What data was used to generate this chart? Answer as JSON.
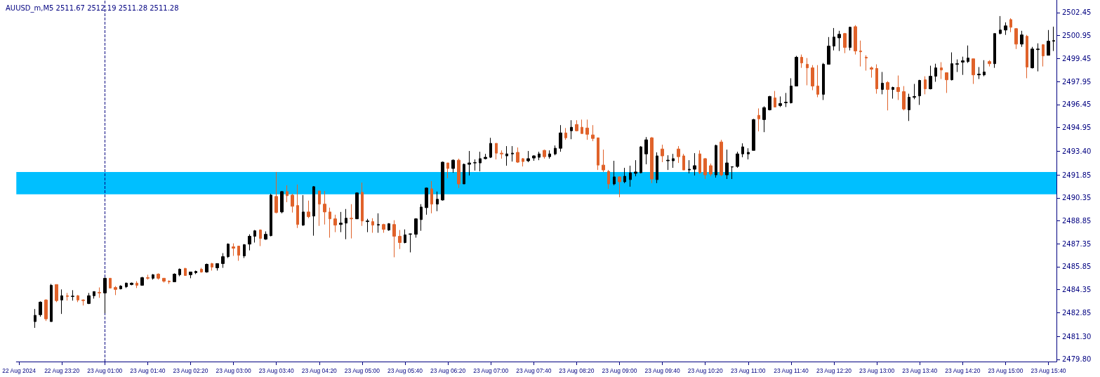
{
  "chart_data": {
    "type": "candlestick",
    "title": "AUUSD_m,M5 2511.67 2512.19 2511.28 2511.28",
    "categories": [
      "22 Aug 2024",
      null,
      null,
      null,
      null,
      null,
      null,
      null,
      "22 Aug 23:20",
      null,
      null,
      null,
      null,
      null,
      null,
      null,
      "23 Aug 01:00",
      null,
      null,
      null,
      null,
      null,
      null,
      null,
      "23 Aug 01:40",
      null,
      null,
      null,
      null,
      null,
      null,
      null,
      "23 Aug 02:20",
      null,
      null,
      null,
      null,
      null,
      null,
      null,
      "23 Aug 03:00",
      null,
      null,
      null,
      null,
      null,
      null,
      null,
      "23 Aug 03:40",
      null,
      null,
      null,
      null,
      null,
      null,
      null,
      "23 Aug 04:20",
      null,
      null,
      null,
      null,
      null,
      null,
      null,
      "23 Aug 05:00",
      null,
      null,
      null,
      null,
      null,
      null,
      null,
      "23 Aug 05:40",
      null,
      null,
      null,
      null,
      null,
      null,
      null,
      "23 Aug 06:20",
      null,
      null,
      null,
      null,
      null,
      null,
      null,
      "23 Aug 07:00",
      null,
      null,
      null,
      null,
      null,
      null,
      null,
      "23 Aug 07:40",
      null,
      null,
      null,
      null,
      null,
      null,
      null,
      "23 Aug 08:20",
      null,
      null,
      null,
      null,
      null,
      null,
      null,
      "23 Aug 09:00",
      null,
      null,
      null,
      null,
      null,
      null,
      null,
      "23 Aug 09:40",
      null,
      null,
      null,
      null,
      null,
      null,
      null,
      "23 Aug 10:20",
      null,
      null,
      null,
      null,
      null,
      null,
      null,
      "23 Aug 11:00",
      null,
      null,
      null,
      null,
      null,
      null,
      null,
      "23 Aug 11:40",
      null,
      null,
      null,
      null,
      null,
      null,
      null,
      "23 Aug 12:20",
      null,
      null,
      null,
      null,
      null,
      null,
      null,
      "23 Aug 13:00",
      null,
      null,
      null,
      null,
      null,
      null,
      null,
      "23 Aug 13:40",
      null,
      null,
      null,
      null,
      null,
      null,
      null,
      "23 Aug 14:20",
      null,
      null,
      null,
      null,
      null,
      null,
      null,
      "23 Aug 15:00",
      null,
      null,
      null,
      null,
      null,
      null,
      null,
      "23 Aug 15:40",
      null
    ],
    "ohlc": [
      null,
      null,
      null,
      [
        2482.27,
        2483.09,
        2481.86,
        2482.68
      ],
      [
        2482.72,
        2483.59,
        2482.59,
        2483.54
      ],
      [
        2483.68,
        2483.73,
        2482.31,
        2482.45
      ],
      [
        2482.27,
        2484.73,
        2482.27,
        2484.64
      ],
      [
        2484.69,
        2484.69,
        2483.54,
        2483.64
      ],
      [
        2483.68,
        2484.37,
        2482.77,
        2483.96
      ],
      [
        2483.96,
        2484.14,
        2483.64,
        2483.91
      ],
      [
        2483.91,
        2484.32,
        2483.64,
        2483.93
      ],
      [
        2483.96,
        2484.0,
        2483.54,
        2483.68
      ],
      [
        2483.68,
        2483.73,
        2483.32,
        2483.64
      ],
      [
        2483.45,
        2484.14,
        2483.41,
        2483.96
      ],
      [
        2483.96,
        2484.23,
        2483.77,
        2484.23
      ],
      [
        2484.18,
        2484.5,
        2483.82,
        2484.14
      ],
      [
        2484.14,
        2485.14,
        2482.81,
        2485.1
      ],
      [
        2485.1,
        2485.1,
        2484.46,
        2484.46
      ],
      [
        2484.5,
        2484.59,
        2484.0,
        2484.37
      ],
      [
        2484.41,
        2484.64,
        2484.37,
        2484.59
      ],
      [
        2484.55,
        2484.82,
        2484.46,
        2484.78
      ],
      [
        2484.69,
        2484.82,
        2484.64,
        2484.78
      ],
      [
        2484.78,
        2484.91,
        2484.46,
        2484.64
      ],
      [
        2484.64,
        2485.19,
        2484.64,
        2485.14
      ],
      [
        2485.14,
        2485.33,
        2485.01,
        2485.1
      ],
      [
        2485.1,
        2485.37,
        2485.01,
        2485.33
      ],
      [
        2485.37,
        2485.42,
        2485.01,
        2485.1
      ],
      [
        2485.1,
        2485.1,
        2484.82,
        2484.91
      ],
      [
        2484.91,
        2484.96,
        2484.73,
        2484.87
      ],
      [
        2484.87,
        2485.42,
        2484.87,
        2485.37
      ],
      [
        2485.33,
        2485.74,
        2485.23,
        2485.69
      ],
      [
        2485.74,
        2485.78,
        2485.28,
        2485.28
      ],
      [
        2485.33,
        2485.51,
        2485.1,
        2485.51
      ],
      [
        2485.46,
        2485.6,
        2485.37,
        2485.55
      ],
      [
        2485.69,
        2485.78,
        2485.46,
        2485.51
      ],
      [
        2485.51,
        2486.06,
        2485.46,
        2486.01
      ],
      [
        2486.06,
        2486.1,
        2485.6,
        2485.83
      ],
      [
        2485.78,
        2486.06,
        2485.6,
        2486.06
      ],
      [
        2486.06,
        2486.74,
        2485.78,
        2486.51
      ],
      [
        2486.51,
        2487.38,
        2486.42,
        2487.33
      ],
      [
        2487.15,
        2487.38,
        2486.56,
        2487.06
      ],
      [
        2487.2,
        2487.2,
        2486.24,
        2486.6
      ],
      [
        2486.56,
        2487.33,
        2486.42,
        2487.29
      ],
      [
        2487.33,
        2487.97,
        2486.92,
        2487.84
      ],
      [
        2487.84,
        2488.25,
        2487.43,
        2488.2
      ],
      [
        2488.25,
        2488.29,
        2487.2,
        2487.7
      ],
      [
        2487.65,
        2488.16,
        2487.61,
        2487.97
      ],
      [
        2487.88,
        2490.62,
        2487.84,
        2490.53
      ],
      [
        2490.44,
        2492.04,
        2489.34,
        2489.39
      ],
      [
        2489.43,
        2490.8,
        2489.34,
        2490.76
      ],
      [
        2490.76,
        2491.17,
        2490.07,
        2490.49
      ],
      [
        2490.53,
        2490.62,
        2489.39,
        2489.8
      ],
      [
        2489.85,
        2491.22,
        2488.38,
        2488.61
      ],
      [
        2488.57,
        2490.53,
        2488.52,
        2489.43
      ],
      [
        2489.43,
        2490.17,
        2489.02,
        2489.12
      ],
      [
        2489.16,
        2491.12,
        2487.88,
        2491.08
      ],
      [
        2490.8,
        2490.8,
        2488.52,
        2489.94
      ],
      [
        2489.94,
        2490.8,
        2488.61,
        2489.43
      ],
      [
        2489.43,
        2489.71,
        2487.75,
        2488.98
      ],
      [
        2488.98,
        2489.25,
        2488.11,
        2488.57
      ],
      [
        2488.61,
        2489.43,
        2488.11,
        2488.7
      ],
      [
        2488.7,
        2489.62,
        2487.65,
        2489.02
      ],
      [
        2489.02,
        2489.94,
        2487.7,
        2488.98
      ],
      [
        2488.98,
        2490.71,
        2488.98,
        2490.67
      ],
      [
        2490.71,
        2491.35,
        2488.52,
        2488.84
      ],
      [
        2488.8,
        2488.98,
        2488.11,
        2488.84
      ],
      [
        2488.8,
        2489.02,
        2488.07,
        2488.57
      ],
      [
        2488.57,
        2489.34,
        2488.07,
        2488.61
      ],
      [
        2488.61,
        2488.66,
        2488.07,
        2488.29
      ],
      [
        2488.25,
        2488.7,
        2488.2,
        2488.66
      ],
      [
        2488.61,
        2488.89,
        2486.47,
        2487.84
      ],
      [
        2487.84,
        2488.25,
        2487.01,
        2487.43
      ],
      [
        2487.43,
        2488.29,
        2487.38,
        2487.93
      ],
      [
        2487.97,
        2488.02,
        2486.79,
        2488.0
      ],
      [
        2487.97,
        2489.02,
        2487.75,
        2488.98
      ],
      [
        2488.93,
        2489.94,
        2488.2,
        2489.75
      ],
      [
        2489.71,
        2491.03,
        2489.25,
        2490.99
      ],
      [
        2490.94,
        2491.44,
        2489.34,
        2489.94
      ],
      [
        2489.94,
        2490.76,
        2489.48,
        2490.26
      ],
      [
        2490.21,
        2492.72,
        2490.17,
        2492.68
      ],
      [
        2492.63,
        2492.63,
        2491.63,
        2492.27
      ],
      [
        2492.27,
        2492.86,
        2491.99,
        2492.81
      ],
      [
        2492.81,
        2492.91,
        2490.99,
        2491.26
      ],
      [
        2491.26,
        2492.59,
        2491.26,
        2492.54
      ],
      [
        2492.54,
        2493.41,
        2491.81,
        2492.63
      ],
      [
        2492.63,
        2492.86,
        2492.13,
        2492.65
      ],
      [
        2492.63,
        2493.36,
        2492.08,
        2492.91
      ],
      [
        2492.91,
        2493.22,
        2492.86,
        2493.0
      ],
      [
        2493.0,
        2494.27,
        2492.95,
        2493.91
      ],
      [
        2493.91,
        2493.91,
        2492.86,
        2493.27
      ],
      [
        2493.27,
        2493.45,
        2492.91,
        2493.22
      ],
      [
        2493.09,
        2493.73,
        2492.45,
        2493.22
      ],
      [
        2493.22,
        2493.73,
        2492.72,
        2493.27
      ],
      [
        2493.32,
        2493.64,
        2492.63,
        2492.68
      ],
      [
        2492.91,
        2492.95,
        2492.4,
        2492.72
      ],
      [
        2492.77,
        2493.41,
        2492.68,
        2492.91
      ],
      [
        2492.95,
        2493.13,
        2492.77,
        2493.09
      ],
      [
        2493.0,
        2493.36,
        2492.81,
        2493.22
      ],
      [
        2493.45,
        2493.5,
        2492.91,
        2493.04
      ],
      [
        2493.04,
        2493.45,
        2492.91,
        2493.22
      ],
      [
        2493.22,
        2493.77,
        2493.13,
        2493.59
      ],
      [
        2493.59,
        2495.1,
        2493.36,
        2494.59
      ],
      [
        2494.59,
        2494.91,
        2494.14,
        2494.27
      ],
      [
        2494.73,
        2495.42,
        2494.18,
        2494.96
      ],
      [
        2495.14,
        2495.42,
        2494.69,
        2494.73
      ],
      [
        2494.96,
        2495.46,
        2494.55,
        2494.55
      ],
      [
        2494.91,
        2495.46,
        2494.14,
        2494.5
      ],
      [
        2494.46,
        2495.1,
        2494.05,
        2494.23
      ],
      [
        2494.27,
        2494.27,
        2492.17,
        2492.49
      ],
      [
        2492.49,
        2493.5,
        2492.04,
        2492.17
      ],
      [
        2492.08,
        2492.17,
        2490.94,
        2491.26
      ],
      [
        2491.26,
        2492.77,
        2491.17,
        2491.72
      ],
      [
        2491.72,
        2491.76,
        2490.39,
        2491.4
      ],
      [
        2491.4,
        2492.31,
        2491.31,
        2491.76
      ],
      [
        2491.54,
        2492.45,
        2491.08,
        2491.99
      ],
      [
        2491.95,
        2492.81,
        2491.76,
        2492.04
      ],
      [
        2491.99,
        2493.73,
        2491.95,
        2493.68
      ],
      [
        2493.22,
        2494.32,
        2492.54,
        2494.14
      ],
      [
        2494.27,
        2494.32,
        2491.31,
        2491.58
      ],
      [
        2491.54,
        2493.32,
        2491.31,
        2493.09
      ],
      [
        2493.54,
        2493.82,
        2492.68,
        2493.09
      ],
      [
        2492.77,
        2493.13,
        2492.17,
        2492.81
      ],
      [
        2492.77,
        2493.22,
        2492.31,
        2492.91
      ],
      [
        2493.54,
        2493.73,
        2492.63,
        2493.04
      ],
      [
        2493.09,
        2493.22,
        2492.17,
        2492.17
      ],
      [
        2492.17,
        2492.81,
        2491.95,
        2492.22
      ],
      [
        2492.22,
        2493.27,
        2491.81,
        2492.45
      ],
      [
        2493.22,
        2493.45,
        2491.9,
        2491.99
      ],
      [
        2492.91,
        2492.95,
        2491.58,
        2491.85
      ],
      [
        2492.45,
        2492.59,
        2491.76,
        2491.9
      ],
      [
        2491.85,
        2493.82,
        2491.67,
        2493.77
      ],
      [
        2494.0,
        2494.14,
        2491.76,
        2491.85
      ],
      [
        2491.85,
        2493.5,
        2491.58,
        2492.63
      ],
      [
        2492.36,
        2492.4,
        2491.58,
        2492.38
      ],
      [
        2492.4,
        2493.36,
        2492.31,
        2493.22
      ],
      [
        2493.22,
        2493.91,
        2493.0,
        2493.68
      ],
      [
        2493.22,
        2493.59,
        2492.86,
        2493.32
      ],
      [
        2493.45,
        2495.51,
        2493.45,
        2495.46
      ],
      [
        2495.74,
        2496.19,
        2494.69,
        2495.51
      ],
      [
        2495.46,
        2496.33,
        2494.64,
        2496.24
      ],
      [
        2496.1,
        2497.01,
        2496.06,
        2496.97
      ],
      [
        2496.88,
        2497.33,
        2496.28,
        2496.28
      ],
      [
        2496.38,
        2496.97,
        2496.28,
        2496.51
      ],
      [
        2496.56,
        2497.2,
        2496.28,
        2496.6
      ],
      [
        2496.56,
        2498.16,
        2496.51,
        2497.65
      ],
      [
        2497.65,
        2499.62,
        2497.65,
        2499.53
      ],
      [
        2499.53,
        2499.71,
        2498.84,
        2499.16
      ],
      [
        2499.07,
        2499.48,
        2497.7,
        2498.84
      ],
      [
        2498.84,
        2499.02,
        2497.38,
        2497.65
      ],
      [
        2497.65,
        2499.02,
        2496.92,
        2497.11
      ],
      [
        2497.11,
        2499.16,
        2496.74,
        2499.07
      ],
      [
        2499.07,
        2500.85,
        2499.07,
        2500.26
      ],
      [
        2500.26,
        2501.44,
        2499.98,
        2500.85
      ],
      [
        2500.8,
        2501.26,
        2499.94,
        2501.03
      ],
      [
        2501.08,
        2501.12,
        2499.8,
        2500.17
      ],
      [
        2500.17,
        2501.53,
        2499.98,
        2501.49
      ],
      [
        2501.53,
        2501.63,
        2499.71,
        2499.94
      ],
      [
        2499.94,
        2500.62,
        2498.93,
        2499.89
      ],
      [
        2499.53,
        2499.66,
        2498.66,
        2499.48
      ],
      [
        2498.84,
        2498.93,
        2498.2,
        2498.75
      ],
      [
        2498.8,
        2499.07,
        2497.15,
        2497.47
      ],
      [
        2497.43,
        2498.57,
        2497.11,
        2497.84
      ],
      [
        2497.88,
        2497.97,
        2496.06,
        2497.43
      ],
      [
        2497.43,
        2497.61,
        2496.83,
        2497.56
      ],
      [
        2497.56,
        2498.34,
        2496.74,
        2497.29
      ],
      [
        2497.29,
        2497.65,
        2496.06,
        2496.15
      ],
      [
        2496.1,
        2497.15,
        2495.37,
        2496.92
      ],
      [
        2496.92,
        2497.79,
        2496.79,
        2496.97
      ],
      [
        2497.01,
        2498.06,
        2496.42,
        2498.02
      ],
      [
        2498.06,
        2498.29,
        2497.11,
        2497.47
      ],
      [
        2497.47,
        2498.98,
        2497.43,
        2498.29
      ],
      [
        2498.29,
        2499.11,
        2497.93,
        2498.84
      ],
      [
        2498.84,
        2499.21,
        2498.11,
        2498.7
      ],
      [
        2498.52,
        2498.52,
        2497.2,
        2498.06
      ],
      [
        2498.06,
        2499.85,
        2498.02,
        2499.11
      ],
      [
        2499.07,
        2499.39,
        2498.57,
        2499.11
      ],
      [
        2499.21,
        2499.57,
        2498.38,
        2499.3
      ],
      [
        2499.25,
        2500.3,
        2499.16,
        2499.48
      ],
      [
        2499.43,
        2499.43,
        2497.79,
        2498.38
      ],
      [
        2498.38,
        2498.89,
        2498.11,
        2498.43
      ],
      [
        2498.38,
        2499.34,
        2498.29,
        2498.57
      ],
      [
        2499.25,
        2499.34,
        2498.93,
        2499.11
      ],
      [
        2499.11,
        2501.08,
        2498.84,
        2501.08
      ],
      [
        2501.08,
        2502.22,
        2501.03,
        2501.31
      ],
      [
        2501.31,
        2501.81,
        2500.99,
        2501.58
      ],
      [
        2501.99,
        2502.08,
        2501.17,
        2501.49
      ],
      [
        2501.4,
        2501.44,
        2500.07,
        2500.39
      ],
      [
        2500.39,
        2501.26,
        2500.21,
        2500.99
      ],
      [
        2500.9,
        2500.99,
        2498.16,
        2498.89
      ],
      [
        2498.84,
        2500.21,
        2498.8,
        2500.07
      ],
      [
        2500.03,
        2500.44,
        2498.61,
        2500.07
      ],
      [
        2500.35,
        2500.39,
        2498.93,
        2499.62
      ],
      [
        2499.66,
        2501.31,
        2499.66,
        2500.58
      ],
      [
        2500.58,
        2501.53,
        2499.94,
        2500.62
      ]
    ],
    "ylim": [
      2479.66,
      2503.27
    ],
    "yticks": [
      2502.45,
      2500.95,
      2499.45,
      2497.95,
      2496.45,
      2494.95,
      {
        "value": 2493.4,
        "label": "2493.40"
      },
      2491.85,
      2490.35,
      2488.85,
      2487.35,
      2485.85,
      2484.35,
      2482.85,
      {
        "value": 2481.3,
        "label": "2481.30"
      },
      {
        "value": 2479.8,
        "label": "2479.80"
      }
    ],
    "ref_lines": [
      {
        "axis": "x",
        "value": "23 Aug 01:00",
        "color": "#000080",
        "line_style": "dashed"
      }
    ],
    "bands": [
      {
        "axis": "y",
        "from": 2490.58,
        "to": 2492.04,
        "color": "#00bfff"
      }
    ]
  }
}
